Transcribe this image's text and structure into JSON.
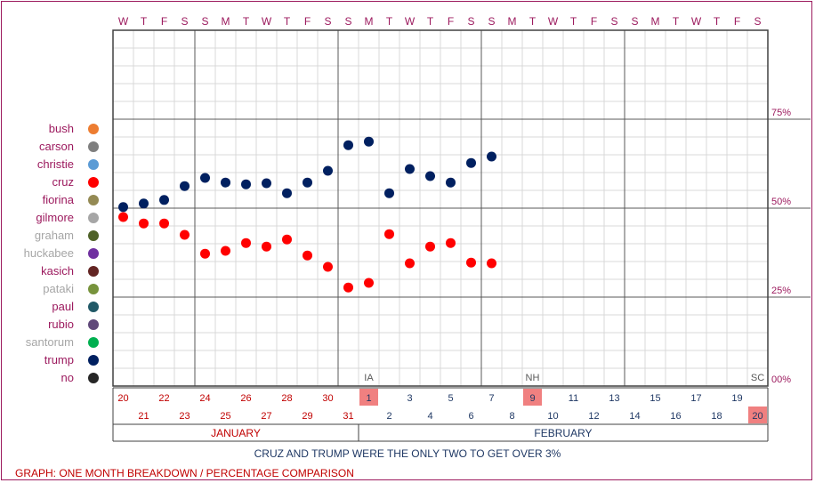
{
  "chart_data": {
    "type": "scatter",
    "y_ticks": [
      "75%",
      "50%",
      "25%",
      "00%"
    ],
    "y_range": [
      0,
      100
    ],
    "weekday_letters": [
      "W",
      "T",
      "F",
      "S",
      "S",
      "M",
      "T",
      "W",
      "T",
      "F",
      "S",
      "S",
      "M",
      "T",
      "W",
      "T",
      "F",
      "S",
      "S",
      "M",
      "T",
      "W",
      "T",
      "F",
      "S",
      "S",
      "M",
      "T",
      "W",
      "T",
      "F",
      "S"
    ],
    "date_numbers": [
      "20",
      "21",
      "22",
      "23",
      "24",
      "25",
      "26",
      "27",
      "28",
      "29",
      "30",
      "31",
      "1",
      "2",
      "3",
      "4",
      "5",
      "6",
      "7",
      "8",
      "9",
      "10",
      "11",
      "12",
      "13",
      "14",
      "15",
      "16",
      "17",
      "18",
      "19",
      "20"
    ],
    "highlighted_dates": [
      12,
      20,
      31
    ],
    "months": [
      {
        "name": "JANUARY",
        "color": "#c00000"
      },
      {
        "name": "FEBRUARY",
        "color": "#1f3864"
      }
    ],
    "events": [
      {
        "label": "IA",
        "day_index": 12
      },
      {
        "label": "NH",
        "day_index": 20
      },
      {
        "label": "SC",
        "day_index": 31
      }
    ],
    "series": [
      {
        "name": "trump",
        "color": "#002060",
        "points": [
          {
            "day_index": 0,
            "value": 50.3
          },
          {
            "day_index": 1,
            "value": 51.3
          },
          {
            "day_index": 2,
            "value": 52.3
          },
          {
            "day_index": 3,
            "value": 56.2
          },
          {
            "day_index": 4,
            "value": 58.5
          },
          {
            "day_index": 5,
            "value": 57.2
          },
          {
            "day_index": 6,
            "value": 56.7
          },
          {
            "day_index": 7,
            "value": 57.0
          },
          {
            "day_index": 8,
            "value": 54.2
          },
          {
            "day_index": 9,
            "value": 57.2
          },
          {
            "day_index": 10,
            "value": 60.5
          },
          {
            "day_index": 11,
            "value": 67.7
          },
          {
            "day_index": 12,
            "value": 68.7
          },
          {
            "day_index": 13,
            "value": 54.2
          },
          {
            "day_index": 14,
            "value": 61.0
          },
          {
            "day_index": 15,
            "value": 59.0
          },
          {
            "day_index": 16,
            "value": 57.2
          },
          {
            "day_index": 17,
            "value": 62.7
          },
          {
            "day_index": 18,
            "value": 64.5
          }
        ]
      },
      {
        "name": "cruz",
        "color": "#ff0000",
        "points": [
          {
            "day_index": 0,
            "value": 47.5
          },
          {
            "day_index": 1,
            "value": 45.7
          },
          {
            "day_index": 2,
            "value": 45.7
          },
          {
            "day_index": 3,
            "value": 42.5
          },
          {
            "day_index": 4,
            "value": 37.2
          },
          {
            "day_index": 5,
            "value": 38.0
          },
          {
            "day_index": 6,
            "value": 40.2
          },
          {
            "day_index": 7,
            "value": 39.2
          },
          {
            "day_index": 8,
            "value": 41.2
          },
          {
            "day_index": 9,
            "value": 36.7
          },
          {
            "day_index": 10,
            "value": 33.5
          },
          {
            "day_index": 11,
            "value": 27.7
          },
          {
            "day_index": 12,
            "value": 29.0
          },
          {
            "day_index": 13,
            "value": 42.7
          },
          {
            "day_index": 14,
            "value": 34.5
          },
          {
            "day_index": 15,
            "value": 39.2
          },
          {
            "day_index": 16,
            "value": 40.2
          },
          {
            "day_index": 17,
            "value": 34.7
          },
          {
            "day_index": 18,
            "value": 34.5
          }
        ]
      }
    ]
  },
  "legend": [
    {
      "label": "bush",
      "color": "#ed7d31",
      "text_color": "#9c1a5e"
    },
    {
      "label": "carson",
      "color": "#7f7f7f",
      "text_color": "#9c1a5e"
    },
    {
      "label": "christie",
      "color": "#5b9bd5",
      "text_color": "#9c1a5e"
    },
    {
      "label": "cruz",
      "color": "#ff0000",
      "text_color": "#9c1a5e"
    },
    {
      "label": "fiorina",
      "color": "#948a54",
      "text_color": "#9c1a5e"
    },
    {
      "label": "gilmore",
      "color": "#a6a6a6",
      "text_color": "#9c1a5e"
    },
    {
      "label": "graham",
      "color": "#4f6228",
      "text_color": "#a6a6a6"
    },
    {
      "label": "huckabee",
      "color": "#7030a0",
      "text_color": "#a6a6a6"
    },
    {
      "label": "kasich",
      "color": "#632523",
      "text_color": "#9c1a5e"
    },
    {
      "label": "pataki",
      "color": "#77933c",
      "text_color": "#a6a6a6"
    },
    {
      "label": "paul",
      "color": "#215967",
      "text_color": "#9c1a5e"
    },
    {
      "label": "rubio",
      "color": "#60497a",
      "text_color": "#9c1a5e"
    },
    {
      "label": "santorum",
      "color": "#00b050",
      "text_color": "#a6a6a6"
    },
    {
      "label": "trump",
      "color": "#002060",
      "text_color": "#9c1a5e"
    },
    {
      "label": "no",
      "color": "#262626",
      "text_color": "#9c1a5e"
    }
  ],
  "caption": "CRUZ AND TRUMP WERE THE ONLY TWO TO GET OVER 3%",
  "footer": "GRAPH: ONE MONTH BREAKDOWN / PERCENTAGE COMPARISON",
  "colors": {
    "border": "#9c1a5e",
    "weekday": "#9c1a5e",
    "highlight": "#f08080",
    "grid_minor": "#d9d9d9",
    "grid_major": "#595959",
    "axis_text": "#9c1a5e",
    "jan_text": "#c00000",
    "feb_text": "#1f3864"
  }
}
